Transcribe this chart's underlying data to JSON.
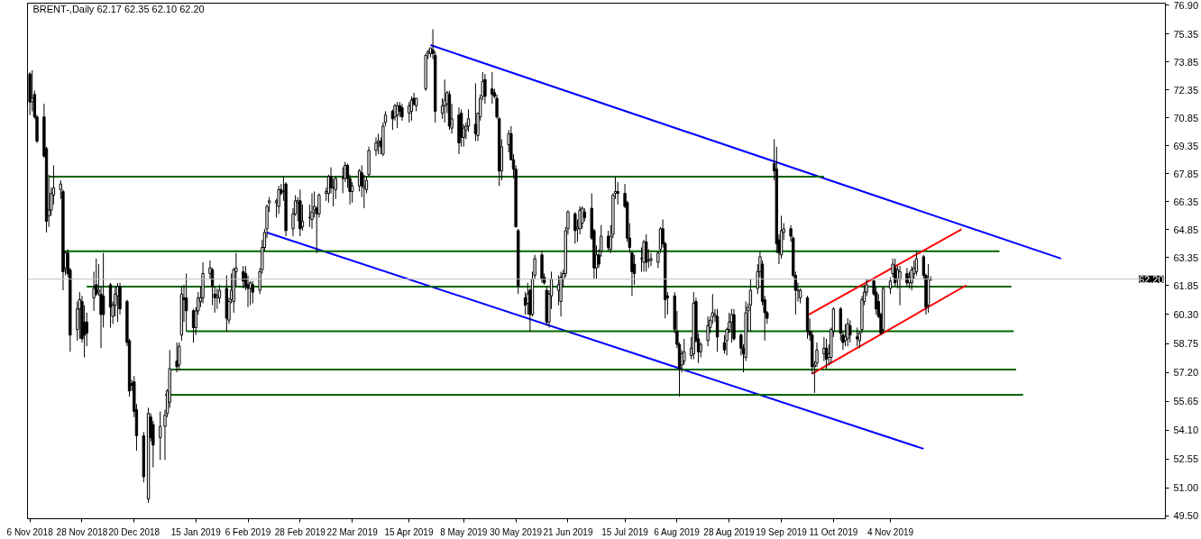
{
  "chart_data": {
    "type": "candlestick",
    "title": "BRENT-,Daily  62.17 62.35 62.10 62.20",
    "x": [
      "2018-11-06",
      "2018-11-07",
      "2018-11-08",
      "2018-11-09",
      "2018-11-12",
      "2018-11-13",
      "2018-11-14",
      "2018-11-15",
      "2018-11-16",
      "2018-11-19",
      "2018-11-20",
      "2018-11-21",
      "2018-11-22",
      "2018-11-23",
      "2018-11-26",
      "2018-11-27",
      "2018-11-28",
      "2018-11-29",
      "2018-11-30",
      "2018-12-03",
      "2018-12-04",
      "2018-12-05",
      "2018-12-06",
      "2018-12-07",
      "2018-12-10",
      "2018-12-11",
      "2018-12-12",
      "2018-12-13",
      "2018-12-14",
      "2018-12-17",
      "2018-12-18",
      "2018-12-19",
      "2018-12-20",
      "2018-12-21",
      "2018-12-24",
      "2018-12-26",
      "2018-12-27",
      "2018-12-28",
      "2018-12-31",
      "2019-01-02",
      "2019-01-03",
      "2019-01-04",
      "2019-01-07",
      "2019-01-08",
      "2019-01-09",
      "2019-01-10",
      "2019-01-11",
      "2019-01-14",
      "2019-01-15",
      "2019-01-16",
      "2019-01-17",
      "2019-01-18",
      "2019-01-21",
      "2019-01-22",
      "2019-01-23",
      "2019-01-24",
      "2019-01-25",
      "2019-01-28",
      "2019-01-29",
      "2019-01-30",
      "2019-01-31",
      "2019-02-01",
      "2019-02-04",
      "2019-02-05",
      "2019-02-06",
      "2019-02-07",
      "2019-02-08",
      "2019-02-11",
      "2019-02-12",
      "2019-02-13",
      "2019-02-14",
      "2019-02-15",
      "2019-02-18",
      "2019-02-19",
      "2019-02-20",
      "2019-02-21",
      "2019-02-22",
      "2019-02-25",
      "2019-02-26",
      "2019-02-27",
      "2019-02-28",
      "2019-03-01",
      "2019-03-04",
      "2019-03-05",
      "2019-03-06",
      "2019-03-07",
      "2019-03-08",
      "2019-03-11",
      "2019-03-12",
      "2019-03-13",
      "2019-03-14",
      "2019-03-15",
      "2019-03-18",
      "2019-03-19",
      "2019-03-20",
      "2019-03-21",
      "2019-03-22",
      "2019-03-25",
      "2019-03-26",
      "2019-03-27",
      "2019-03-28",
      "2019-03-29",
      "2019-04-01",
      "2019-04-02",
      "2019-04-03",
      "2019-04-04",
      "2019-04-05",
      "2019-04-08",
      "2019-04-09",
      "2019-04-10",
      "2019-04-11",
      "2019-04-12",
      "2019-04-15",
      "2019-04-16",
      "2019-04-17",
      "2019-04-18",
      "2019-04-22",
      "2019-04-23",
      "2019-04-24",
      "2019-04-25",
      "2019-04-26",
      "2019-04-29",
      "2019-04-30",
      "2019-05-01",
      "2019-05-02",
      "2019-05-03",
      "2019-05-06",
      "2019-05-07",
      "2019-05-08",
      "2019-05-09",
      "2019-05-10",
      "2019-05-13",
      "2019-05-14",
      "2019-05-15",
      "2019-05-16",
      "2019-05-17",
      "2019-05-20",
      "2019-05-21",
      "2019-05-22",
      "2019-05-23",
      "2019-05-24",
      "2019-05-27",
      "2019-05-28",
      "2019-05-29",
      "2019-05-30",
      "2019-05-31",
      "2019-06-03",
      "2019-06-04",
      "2019-06-05",
      "2019-06-06",
      "2019-06-07",
      "2019-06-10",
      "2019-06-11",
      "2019-06-12",
      "2019-06-13",
      "2019-06-14",
      "2019-06-17",
      "2019-06-18",
      "2019-06-19",
      "2019-06-20",
      "2019-06-21",
      "2019-06-24",
      "2019-06-25",
      "2019-06-26",
      "2019-06-27",
      "2019-06-28",
      "2019-07-01",
      "2019-07-02",
      "2019-07-03",
      "2019-07-04",
      "2019-07-05",
      "2019-07-08",
      "2019-07-09",
      "2019-07-10",
      "2019-07-11",
      "2019-07-12",
      "2019-07-15",
      "2019-07-16",
      "2019-07-17",
      "2019-07-18",
      "2019-07-19",
      "2019-07-22",
      "2019-07-23",
      "2019-07-24",
      "2019-07-25",
      "2019-07-26",
      "2019-07-29",
      "2019-07-30",
      "2019-07-31",
      "2019-08-01",
      "2019-08-02",
      "2019-08-05",
      "2019-08-06",
      "2019-08-07",
      "2019-08-08",
      "2019-08-09",
      "2019-08-12",
      "2019-08-13",
      "2019-08-14",
      "2019-08-15",
      "2019-08-16",
      "2019-08-19",
      "2019-08-20",
      "2019-08-21",
      "2019-08-22",
      "2019-08-23",
      "2019-08-26",
      "2019-08-27",
      "2019-08-28",
      "2019-08-29",
      "2019-08-30",
      "2019-09-02",
      "2019-09-03",
      "2019-09-04",
      "2019-09-05",
      "2019-09-06",
      "2019-09-09",
      "2019-09-10",
      "2019-09-11",
      "2019-09-12",
      "2019-09-13",
      "2019-09-16",
      "2019-09-17",
      "2019-09-18",
      "2019-09-19",
      "2019-09-20",
      "2019-09-23",
      "2019-09-24",
      "2019-09-25",
      "2019-09-26",
      "2019-09-27",
      "2019-09-30",
      "2019-10-01",
      "2019-10-02",
      "2019-10-03",
      "2019-10-04",
      "2019-10-07",
      "2019-10-08",
      "2019-10-09",
      "2019-10-10",
      "2019-10-11",
      "2019-10-14",
      "2019-10-15",
      "2019-10-16",
      "2019-10-17",
      "2019-10-18",
      "2019-10-21",
      "2019-10-22",
      "2019-10-23",
      "2019-10-24",
      "2019-10-25",
      "2019-10-28",
      "2019-10-29",
      "2019-10-30",
      "2019-10-31",
      "2019-11-01",
      "2019-11-04",
      "2019-11-05",
      "2019-11-06",
      "2019-11-07",
      "2019-11-08",
      "2019-11-11",
      "2019-11-12",
      "2019-11-13",
      "2019-11-14",
      "2019-11-15",
      "2019-11-18",
      "2019-11-19",
      "2019-11-20",
      "2019-11-21"
    ],
    "ohlc": [
      [
        73.2,
        73.3,
        71.0,
        71.7
      ],
      [
        71.7,
        73.4,
        71.2,
        71.9
      ],
      [
        72.1,
        72.3,
        70.8,
        70.9
      ],
      [
        70.9,
        71.0,
        69.5,
        69.6
      ],
      [
        70.9,
        71.6,
        68.7,
        68.8
      ],
      [
        69.2,
        69.3,
        64.7,
        65.3
      ],
      [
        65.6,
        67.8,
        65.0,
        65.9
      ],
      [
        65.9,
        67.1,
        65.6,
        66.8
      ],
      [
        66.7,
        68.3,
        66.2,
        67.1
      ],
      [
        67.0,
        67.5,
        66.5,
        67.3
      ],
      [
        66.9,
        67.0,
        61.6,
        62.6
      ],
      [
        62.8,
        63.7,
        62.4,
        63.6
      ],
      [
        63.6,
        63.8,
        62.3,
        62.5
      ],
      [
        62.7,
        62.8,
        58.3,
        59.2
      ],
      [
        59.5,
        61.0,
        58.9,
        60.6
      ],
      [
        60.6,
        61.5,
        59.0,
        61.1
      ],
      [
        61.0,
        61.3,
        58.8,
        59.0
      ],
      [
        59.9,
        60.8,
        58.0,
        59.2
      ],
      [
        59.9,
        60.4,
        58.6,
        59.3
      ],
      [
        61.2,
        62.6,
        60.5,
        61.7
      ],
      [
        61.9,
        63.3,
        61.3,
        61.4
      ],
      [
        61.5,
        63.0,
        61.3,
        61.6
      ],
      [
        61.4,
        61.8,
        58.5,
        60.3
      ],
      [
        61.3,
        63.6,
        59.6,
        60.3
      ],
      [
        61.9,
        62.0,
        59.6,
        60.7
      ],
      [
        60.2,
        61.0,
        59.8,
        60.8
      ],
      [
        60.8,
        61.8,
        60.2,
        61.4
      ],
      [
        61.3,
        62.0,
        59.9,
        61.8
      ],
      [
        61.8,
        62.0,
        60.3,
        60.6
      ],
      [
        61.0,
        61.1,
        58.6,
        58.8
      ],
      [
        58.9,
        59.0,
        55.9,
        56.2
      ],
      [
        56.6,
        56.8,
        56.2,
        56.5
      ],
      [
        56.7,
        57.0,
        54.8,
        55.1
      ],
      [
        55.2,
        55.5,
        53.0,
        53.8
      ],
      [
        53.8,
        54.0,
        51.3,
        51.6
      ],
      [
        50.4,
        55.3,
        50.2,
        55.0
      ],
      [
        54.8,
        55.0,
        53.5,
        53.7
      ],
      [
        54.4,
        54.6,
        52.1,
        53.3
      ],
      [
        53.7,
        55.1,
        52.5,
        54.3
      ],
      [
        54.3,
        55.2,
        52.5,
        54.9
      ],
      [
        55.0,
        56.3,
        54.8,
        56.2
      ],
      [
        55.6,
        58.4,
        55.3,
        57.4
      ],
      [
        57.8,
        58.8,
        57.2,
        57.5
      ],
      [
        57.6,
        58.8,
        57.3,
        58.6
      ],
      [
        59.2,
        61.8,
        58.9,
        61.4
      ],
      [
        61.2,
        61.9,
        59.9,
        61.1
      ],
      [
        61.2,
        62.5,
        59.4,
        60.5
      ],
      [
        60.5,
        60.6,
        58.8,
        59.6
      ],
      [
        59.6,
        60.7,
        59.2,
        60.5
      ],
      [
        60.5,
        61.5,
        60.3,
        61.2
      ],
      [
        61.0,
        61.8,
        60.7,
        61.2
      ],
      [
        61.2,
        63.1,
        60.9,
        62.5
      ],
      [
        62.5,
        63.2,
        62.2,
        62.8
      ],
      [
        62.7,
        62.8,
        60.8,
        61.8
      ],
      [
        61.4,
        61.8,
        60.4,
        61.2
      ],
      [
        61.2,
        61.7,
        60.6,
        61.3
      ],
      [
        61.2,
        61.9,
        60.9,
        61.6
      ],
      [
        61.7,
        62.4,
        59.4,
        60.1
      ],
      [
        60.0,
        61.2,
        59.8,
        61.0
      ],
      [
        61.1,
        62.5,
        60.9,
        61.6
      ],
      [
        61.0,
        62.8,
        60.4,
        62.7
      ],
      [
        62.6,
        63.6,
        61.8,
        62.8
      ],
      [
        62.6,
        62.9,
        61.7,
        62.1
      ],
      [
        62.5,
        62.9,
        61.6,
        61.8
      ],
      [
        61.9,
        62.4,
        60.7,
        61.7
      ],
      [
        61.7,
        62.1,
        60.8,
        62.0
      ],
      [
        61.9,
        62.1,
        60.9,
        61.5
      ],
      [
        61.6,
        62.8,
        61.4,
        62.6
      ],
      [
        62.7,
        64.3,
        62.5,
        63.9
      ],
      [
        63.9,
        64.9,
        63.7,
        64.7
      ],
      [
        64.9,
        66.2,
        64.4,
        66.1
      ],
      [
        66.3,
        66.6,
        65.8,
        66.4
      ],
      [
        66.3,
        66.5,
        65.5,
        66.4
      ],
      [
        66.1,
        67.2,
        65.7,
        67.0
      ],
      [
        67.0,
        67.3,
        66.7,
        66.8
      ],
      [
        66.9,
        67.7,
        66.4,
        66.9
      ],
      [
        67.3,
        67.4,
        64.5,
        64.8
      ],
      [
        64.9,
        66.0,
        64.5,
        65.7
      ],
      [
        65.7,
        66.7,
        65.6,
        66.4
      ],
      [
        66.3,
        66.6,
        65.3,
        66.4
      ],
      [
        66.4,
        67.0,
        64.5,
        64.9
      ],
      [
        65.0,
        66.2,
        64.8,
        65.3
      ],
      [
        65.5,
        66.2,
        65.0,
        65.5
      ],
      [
        65.4,
        66.8,
        64.9,
        65.8
      ],
      [
        65.9,
        66.9,
        65.5,
        66.1
      ],
      [
        66.0,
        66.1,
        63.6,
        65.7
      ],
      [
        65.7,
        66.8,
        65.5,
        66.7
      ],
      [
        66.8,
        67.1,
        66.4,
        66.9
      ],
      [
        66.8,
        67.8,
        66.3,
        67.7
      ],
      [
        67.7,
        68.2,
        66.8,
        67.1
      ],
      [
        67.1,
        67.6,
        66.1,
        67.1
      ],
      [
        67.0,
        67.7,
        66.5,
        67.6
      ],
      [
        67.6,
        68.2,
        66.8,
        67.6
      ],
      [
        67.6,
        68.5,
        67.4,
        68.3
      ],
      [
        68.3,
        68.4,
        67.1,
        67.6
      ],
      [
        67.6,
        67.8,
        66.2,
        66.9
      ],
      [
        66.9,
        67.4,
        66.3,
        67.2
      ],
      [
        67.2,
        68.1,
        66.9,
        68.0
      ],
      [
        67.9,
        68.3,
        66.6,
        67.2
      ],
      [
        67.1,
        67.8,
        66.0,
        67.2
      ],
      [
        67.0,
        67.7,
        66.8,
        67.5
      ],
      [
        67.8,
        69.3,
        67.7,
        69.1
      ],
      [
        69.1,
        69.8,
        68.8,
        69.5
      ],
      [
        69.5,
        70.0,
        68.9,
        69.6
      ],
      [
        69.6,
        69.8,
        68.9,
        69.3
      ],
      [
        68.9,
        70.6,
        68.8,
        70.4
      ],
      [
        70.6,
        71.2,
        70.4,
        71.0
      ],
      [
        71.2,
        71.3,
        70.2,
        70.8
      ],
      [
        70.9,
        71.6,
        70.7,
        71.5
      ],
      [
        71.0,
        71.7,
        70.3,
        71.5
      ],
      [
        71.5,
        71.7,
        70.9,
        71.2
      ],
      [
        71.4,
        71.6,
        70.7,
        70.9
      ],
      [
        71.1,
        71.7,
        70.6,
        71.5
      ],
      [
        71.2,
        72.0,
        70.7,
        71.8
      ],
      [
        71.9,
        72.2,
        71.5,
        71.6
      ],
      [
        71.5,
        71.9,
        71.2,
        71.9
      ],
      [
        72.4,
        74.3,
        72.3,
        74.2
      ],
      [
        74.3,
        74.5,
        74.0,
        74.4
      ],
      [
        74.3,
        74.6,
        74.1,
        74.6
      ],
      [
        74.5,
        75.6,
        74.0,
        74.3
      ],
      [
        74.2,
        74.4,
        70.6,
        71.2
      ],
      [
        71.1,
        71.9,
        70.8,
        71.5
      ],
      [
        71.5,
        72.9,
        70.6,
        71.8
      ],
      [
        71.6,
        72.3,
        71.1,
        72.2
      ],
      [
        72.1,
        72.3,
        70.2,
        70.4
      ],
      [
        70.3,
        71.6,
        70.0,
        70.8
      ],
      [
        71.0,
        71.4,
        68.9,
        69.5
      ],
      [
        71.1,
        71.3,
        69.3,
        69.8
      ],
      [
        69.8,
        70.5,
        69.3,
        70.3
      ],
      [
        70.2,
        70.6,
        69.7,
        70.4
      ],
      [
        70.4,
        71.3,
        70.1,
        70.8
      ],
      [
        70.5,
        72.7,
        69.6,
        70.0
      ],
      [
        69.9,
        71.1,
        69.6,
        71.1
      ],
      [
        70.9,
        72.1,
        70.7,
        71.9
      ],
      [
        72.0,
        73.3,
        71.8,
        72.8
      ],
      [
        72.9,
        73.2,
        71.6,
        72.0
      ],
      [
        72.4,
        73.3,
        71.6,
        72.1
      ],
      [
        72.2,
        72.4,
        71.9,
        72.0
      ],
      [
        71.9,
        72.1,
        70.8,
        70.9
      ],
      [
        70.8,
        70.9,
        67.2,
        68.0
      ],
      [
        68.0,
        69.7,
        67.5,
        69.3
      ],
      [
        69.4,
        70.2,
        69.0,
        70.0
      ],
      [
        70.0,
        70.4,
        68.6,
        68.6
      ],
      [
        68.6,
        68.9,
        67.6,
        68.1
      ],
      [
        68.1,
        68.3,
        65.0,
        65.0
      ],
      [
        64.8,
        64.9,
        61.4,
        61.8
      ],
      [
        61.2,
        61.5,
        60.3,
        60.8
      ],
      [
        60.9,
        62.0,
        60.3,
        61.4
      ],
      [
        61.6,
        61.7,
        59.4,
        60.3
      ],
      [
        60.3,
        62.6,
        60.2,
        62.2
      ],
      [
        62.4,
        63.5,
        62.2,
        63.3
      ],
      [
        63.5,
        63.7,
        62.0,
        62.2
      ],
      [
        62.3,
        62.5,
        61.9,
        62.0
      ],
      [
        61.6,
        61.8,
        59.7,
        59.9
      ],
      [
        59.9,
        61.6,
        59.6,
        61.4
      ],
      [
        61.3,
        62.6,
        60.6,
        62.2
      ],
      [
        61.6,
        62.4,
        60.8,
        61.9
      ],
      [
        61.0,
        62.6,
        60.2,
        62.3
      ],
      [
        62.2,
        62.7,
        61.8,
        62.5
      ],
      [
        62.5,
        65.0,
        62.3,
        64.8
      ],
      [
        64.9,
        65.9,
        64.6,
        65.8
      ],
      [
        65.7,
        65.8,
        64.1,
        64.8
      ],
      [
        64.9,
        65.4,
        64.2,
        65.0
      ],
      [
        64.9,
        66.1,
        64.6,
        65.9
      ],
      [
        65.2,
        66.1,
        64.9,
        66.0
      ],
      [
        65.8,
        66.0,
        65.3,
        65.5
      ],
      [
        66.0,
        66.8,
        64.3,
        64.4
      ],
      [
        64.8,
        64.9,
        62.2,
        62.8
      ],
      [
        62.8,
        64.0,
        62.2,
        63.5
      ],
      [
        63.5,
        63.8,
        62.8,
        63.0
      ],
      [
        63.7,
        65.1,
        63.4,
        64.5
      ],
      [
        64.5,
        64.8,
        63.7,
        63.9
      ],
      [
        63.8,
        65.1,
        63.6,
        64.5
      ],
      [
        64.6,
        66.8,
        64.4,
        66.7
      ],
      [
        66.8,
        67.7,
        66.5,
        66.9
      ],
      [
        66.9,
        67.4,
        66.2,
        66.8
      ],
      [
        66.8,
        67.3,
        66.0,
        66.1
      ],
      [
        66.3,
        66.4,
        64.2,
        64.4
      ],
      [
        64.4,
        65.2,
        63.6,
        63.9
      ],
      [
        63.6,
        63.7,
        61.3,
        62.6
      ],
      [
        63.0,
        63.5,
        61.9,
        62.5
      ],
      [
        63.3,
        63.9,
        62.6,
        63.3
      ],
      [
        63.1,
        64.3,
        62.6,
        64.2
      ],
      [
        64.2,
        64.6,
        62.6,
        63.1
      ],
      [
        63.2,
        63.8,
        62.8,
        63.2
      ],
      [
        63.2,
        63.6,
        62.9,
        63.3
      ],
      [
        63.1,
        63.7,
        62.8,
        63.6
      ],
      [
        63.8,
        65.0,
        63.6,
        64.9
      ],
      [
        64.9,
        65.4,
        63.9,
        64.1
      ],
      [
        64.1,
        64.2,
        60.1,
        61.1
      ],
      [
        61.3,
        61.5,
        60.3,
        61.2
      ],
      [
        61.3,
        61.5,
        59.3,
        59.5
      ],
      [
        59.4,
        60.5,
        58.5,
        58.7
      ],
      [
        58.7,
        58.8,
        55.9,
        57.4
      ],
      [
        57.6,
        58.4,
        57.2,
        58.2
      ],
      [
        57.8,
        59.0,
        57.6,
        58.3
      ],
      [
        58.1,
        59.1,
        57.9,
        58.5
      ],
      [
        58.2,
        61.5,
        57.9,
        60.9
      ],
      [
        61.0,
        61.2,
        58.8,
        58.9
      ],
      [
        59.0,
        59.3,
        57.7,
        58.3
      ],
      [
        58.3,
        58.8,
        58.0,
        58.7
      ],
      [
        58.9,
        60.2,
        58.6,
        59.7
      ],
      [
        59.6,
        60.2,
        59.3,
        60.0
      ],
      [
        60.2,
        61.4,
        59.8,
        60.4
      ],
      [
        60.2,
        60.6,
        59.9,
        60.3
      ],
      [
        60.2,
        60.6,
        58.3,
        59.1
      ],
      [
        58.8,
        59.2,
        58.2,
        58.4
      ],
      [
        58.9,
        59.6,
        58.1,
        59.5
      ],
      [
        59.5,
        60.4,
        59.3,
        59.9
      ],
      [
        59.9,
        60.6,
        58.8,
        60.3
      ],
      [
        60.3,
        60.6,
        58.9,
        59.0
      ],
      [
        59.2,
        59.3,
        58.1,
        58.5
      ],
      [
        58.5,
        58.7,
        57.2,
        58.2
      ],
      [
        58.0,
        61.0,
        57.8,
        60.4
      ],
      [
        60.5,
        60.9,
        59.4,
        60.7
      ],
      [
        60.8,
        62.2,
        59.4,
        61.6
      ],
      [
        61.7,
        63.0,
        61.4,
        62.6
      ],
      [
        62.6,
        63.7,
        62.3,
        63.4
      ],
      [
        63.0,
        63.2,
        60.8,
        61.0
      ],
      [
        61.1,
        61.3,
        58.9,
        60.4
      ],
      [
        60.4,
        60.5,
        59.8,
        60.1
      ],
      [
        68.4,
        69.7,
        67.5,
        68.0
      ],
      [
        68.1,
        69.3,
        63.6,
        64.1
      ],
      [
        64.3,
        64.6,
        63.0,
        63.6
      ],
      [
        63.5,
        65.6,
        63.3,
        64.8
      ],
      [
        64.7,
        65.2,
        64.3,
        64.9
      ],
      [
        64.9,
        65.1,
        64.2,
        64.5
      ],
      [
        64.4,
        64.5,
        62.3,
        62.4
      ],
      [
        62.4,
        62.6,
        60.3,
        61.6
      ],
      [
        61.6,
        62.0,
        61.0,
        61.6
      ],
      [
        61.2,
        61.7,
        60.9,
        61.6
      ],
      [
        61.2,
        61.3,
        59.0,
        59.4
      ],
      [
        59.4,
        60.1,
        58.9,
        59.2
      ],
      [
        59.2,
        59.4,
        57.1,
        57.5
      ],
      [
        57.5,
        57.8,
        56.1,
        57.6
      ],
      [
        57.7,
        58.8,
        57.5,
        58.4
      ],
      [
        58.2,
        59.1,
        57.8,
        58.5
      ],
      [
        58.5,
        59.0,
        57.4,
        57.9
      ],
      [
        58.0,
        58.7,
        57.6,
        58.2
      ],
      [
        58.0,
        59.6,
        57.7,
        59.5
      ],
      [
        59.4,
        60.7,
        59.1,
        60.6
      ],
      [
        60.6,
        60.7,
        58.9,
        59.3
      ],
      [
        59.2,
        59.4,
        58.4,
        58.8
      ],
      [
        58.9,
        59.8,
        58.6,
        59.1
      ],
      [
        59.0,
        60.1,
        58.6,
        59.8
      ],
      [
        59.7,
        60.0,
        58.8,
        59.2
      ],
      [
        59.1,
        59.6,
        58.6,
        59.0
      ],
      [
        58.9,
        59.4,
        58.5,
        59.3
      ],
      [
        59.5,
        61.3,
        59.3,
        61.1
      ],
      [
        61.0,
        61.9,
        60.8,
        61.5
      ],
      [
        61.5,
        62.2,
        61.3,
        61.9
      ],
      [
        62.1,
        62.2,
        61.3,
        61.4
      ],
      [
        61.5,
        61.8,
        60.3,
        60.6
      ],
      [
        61.0,
        61.4,
        60.1,
        60.2
      ],
      [
        60.3,
        60.4,
        59.2,
        59.3
      ],
      [
        59.5,
        61.8,
        59.3,
        61.7
      ],
      [
        61.7,
        62.3,
        61.4,
        62.1
      ],
      [
        62.5,
        63.3,
        62.3,
        63.0
      ],
      [
        62.8,
        63.3,
        61.8,
        62.0
      ],
      [
        62.2,
        62.9,
        61.7,
        62.7
      ],
      [
        62.2,
        62.9,
        60.8,
        62.6
      ],
      [
        62.5,
        62.8,
        61.8,
        62.0
      ],
      [
        62.0,
        62.6,
        61.7,
        62.3
      ],
      [
        62.0,
        62.9,
        61.6,
        62.7
      ],
      [
        62.5,
        63.2,
        62.2,
        62.8
      ],
      [
        62.6,
        63.7,
        62.4,
        63.3
      ],
      [
        63.4,
        63.5,
        62.2,
        62.4
      ],
      [
        62.4,
        62.5,
        60.3,
        60.7
      ],
      [
        60.8,
        63.0,
        60.4,
        62.2
      ],
      [
        62.17,
        62.35,
        62.1,
        62.2
      ]
    ],
    "series": [
      {
        "type": "line",
        "color": "#0000ff",
        "x": [
          "2019-04-24",
          "2020-01-15"
        ],
        "values": [
          74.75,
          63.3
        ]
      },
      {
        "type": "line",
        "color": "#0000ff",
        "x": [
          "2019-02-14",
          "2019-11-18"
        ],
        "values": [
          64.7,
          53.1
        ]
      },
      {
        "type": "line",
        "color": "#006400",
        "x": [
          "2018-11-14",
          "2019-10-07"
        ],
        "values": [
          67.7,
          67.7
        ]
      },
      {
        "type": "line",
        "color": "#006400",
        "x": [
          "2018-11-20",
          "2019-12-20"
        ],
        "values": [
          63.7,
          63.7
        ]
      },
      {
        "type": "line",
        "color": "#006400",
        "x": [
          "2018-11-30",
          "2019-12-25"
        ],
        "values": [
          61.8,
          61.8
        ]
      },
      {
        "type": "line",
        "color": "#006400",
        "x": [
          "2019-01-11",
          "2019-12-26"
        ],
        "values": [
          59.4,
          59.4
        ]
      },
      {
        "type": "line",
        "color": "#006400",
        "x": [
          "2019-01-04",
          "2019-12-27"
        ],
        "values": [
          57.35,
          57.35
        ]
      },
      {
        "type": "line",
        "color": "#006400",
        "x": [
          "2019-01-02",
          "2019-12-30"
        ],
        "values": [
          56.0,
          56.0
        ]
      },
      {
        "type": "line",
        "color": "#ff0000",
        "x": [
          "2019-09-30",
          "2019-12-04"
        ],
        "values": [
          60.26,
          64.87
        ]
      },
      {
        "type": "line",
        "color": "#ff0000",
        "x": [
          "2019-10-02",
          "2019-12-06"
        ],
        "values": [
          57.13,
          61.87
        ]
      }
    ],
    "ref_lines": [
      {
        "axis": "y",
        "value": 62.2,
        "label": "62.20",
        "color": "#c0c0c0"
      }
    ],
    "xlim": [
      "2018-11-05",
      "2020-02-28"
    ],
    "xticks": [
      {
        "value": "2018-11-06",
        "label": "6 Nov 2018"
      },
      {
        "value": "2018-11-28",
        "label": "28 Nov 2018"
      },
      {
        "value": "2018-12-20",
        "label": "20 Dec 2018"
      },
      {
        "value": "2019-01-15",
        "label": "15 Jan 2019"
      },
      {
        "value": "2019-02-06",
        "label": "6 Feb 2019"
      },
      {
        "value": "2019-02-28",
        "label": "28 Feb 2019"
      },
      {
        "value": "2019-03-22",
        "label": "22 Mar 2019"
      },
      {
        "value": "2019-04-15",
        "label": "15 Apr 2019"
      },
      {
        "value": "2019-05-08",
        "label": "8 May 2019"
      },
      {
        "value": "2019-05-30",
        "label": "30 May 2019"
      },
      {
        "value": "2019-06-21",
        "label": "21 Jun 2019"
      },
      {
        "value": "2019-07-15",
        "label": "15 Jul 2019"
      },
      {
        "value": "2019-08-06",
        "label": "6 Aug 2019"
      },
      {
        "value": "2019-08-28",
        "label": "28 Aug 2019"
      },
      {
        "value": "2019-09-19",
        "label": "19 Sep 2019"
      },
      {
        "value": "2019-10-11",
        "label": "11 Oct 2019"
      },
      {
        "value": "2019-11-04",
        "label": "4 Nov 2019"
      }
    ],
    "ylim": [
      49.35,
      77.0
    ],
    "yticks": [
      {
        "value": 76.9,
        "label": "76.90"
      },
      {
        "value": 75.35,
        "label": "75.35"
      },
      {
        "value": 73.85,
        "label": "73.85"
      },
      {
        "value": 72.35,
        "label": "72.35"
      },
      {
        "value": 70.85,
        "label": "70.85"
      },
      {
        "value": 69.35,
        "label": "69.35"
      },
      {
        "value": 67.85,
        "label": "67.85"
      },
      {
        "value": 66.35,
        "label": "66.35"
      },
      {
        "value": 64.85,
        "label": "64.85"
      },
      {
        "value": 63.35,
        "label": "63.35"
      },
      {
        "value": 61.85,
        "label": "61.85"
      },
      {
        "value": 60.3,
        "label": "60.30"
      },
      {
        "value": 58.75,
        "label": "58.75"
      },
      {
        "value": 57.2,
        "label": "57.20"
      },
      {
        "value": 55.65,
        "label": "55.65"
      },
      {
        "value": 54.1,
        "label": "54.10"
      },
      {
        "value": 52.55,
        "label": "52.55"
      },
      {
        "value": 51.0,
        "label": "51.00"
      },
      {
        "value": 49.5,
        "label": "49.50"
      }
    ]
  }
}
